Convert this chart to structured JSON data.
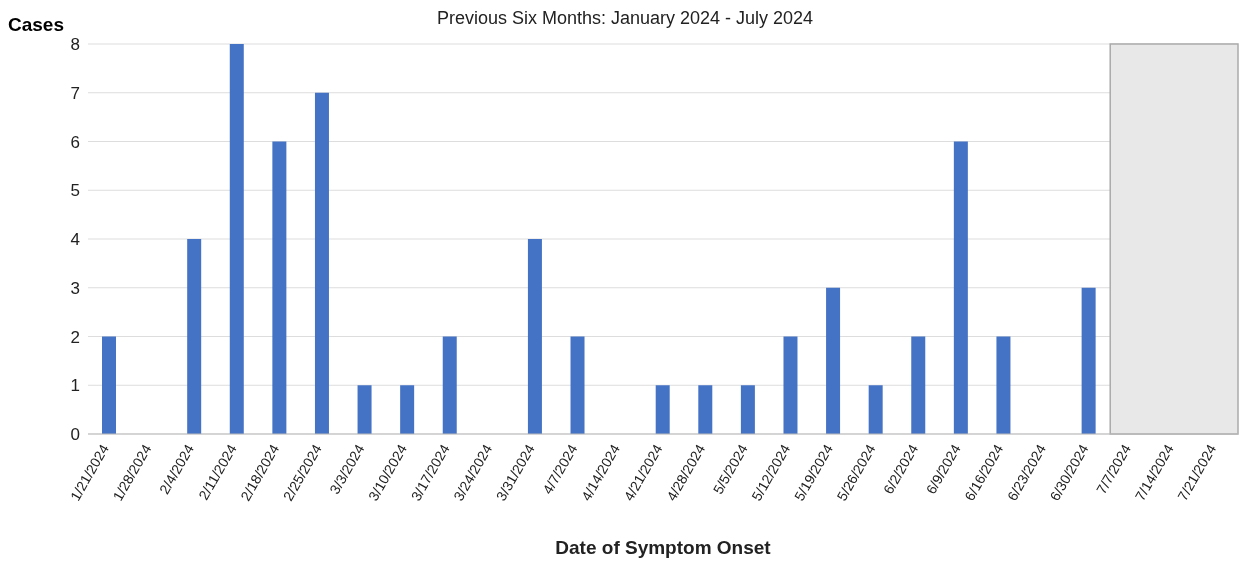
{
  "chart_data": {
    "type": "bar",
    "title": "Previous Six Months: January 2024 - July 2024",
    "xlabel": "Date of Symptom Onset",
    "ylabel": "Cases",
    "categories": [
      "1/21/2024",
      "1/28/2024",
      "2/4/2024",
      "2/11/2024",
      "2/18/2024",
      "2/25/2024",
      "3/3/2024",
      "3/10/2024",
      "3/17/2024",
      "3/24/2024",
      "3/31/2024",
      "4/7/2024",
      "4/14/2024",
      "4/21/2024",
      "4/28/2024",
      "5/5/2024",
      "5/12/2024",
      "5/19/2024",
      "5/26/2024",
      "6/2/2024",
      "6/9/2024",
      "6/16/2024",
      "6/23/2024",
      "6/30/2024",
      "7/7/2024",
      "7/14/2024",
      "7/21/2024"
    ],
    "values": [
      2,
      0,
      4,
      8,
      6,
      7,
      1,
      1,
      2,
      0,
      4,
      2,
      0,
      1,
      1,
      1,
      2,
      3,
      1,
      2,
      6,
      2,
      0,
      3,
      null,
      null,
      null
    ],
    "color": "#4472c4",
    "ylim": [
      0,
      8
    ],
    "yticks": [
      0,
      1,
      2,
      3,
      4,
      5,
      6,
      7,
      8
    ],
    "grid": "y",
    "bands": [
      {
        "axis": "x",
        "from": "7/7/2024",
        "to": "7/21/2024",
        "color": "#e8e8e8"
      }
    ]
  }
}
